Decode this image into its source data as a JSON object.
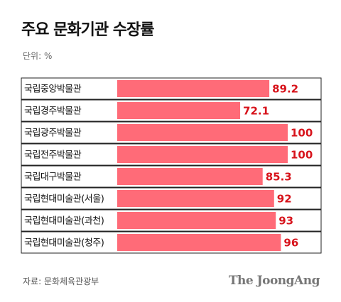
{
  "header": {
    "title": "주요 문화기관 수장률",
    "unit": "단위: %"
  },
  "footer": {
    "source": "자료: 문화체육관광부",
    "logo": "The JoongAng"
  },
  "colors": {
    "bar": "#ff6b78",
    "value": "#d7131b",
    "row_border": "#222222",
    "text": "#111111"
  },
  "chart_data": {
    "type": "bar",
    "orientation": "horizontal",
    "title": "주요 문화기관 수장률",
    "unit": "단위: %",
    "categories": [
      "국립중앙박물관",
      "국립경주박물관",
      "국립광주박물관",
      "국립전주박물관",
      "국립대구박물관",
      "국립현대미술관(서울)",
      "국립현대미술관(과천)",
      "국립현대미술관(청주)"
    ],
    "values": [
      89.2,
      72.1,
      100,
      100,
      85.3,
      92,
      93,
      96
    ],
    "value_labels": [
      "89.2",
      "72.1",
      "100",
      "100",
      "85.3",
      "92",
      "93",
      "96"
    ],
    "xlim": [
      0,
      100
    ],
    "grid": false,
    "legend": "none"
  }
}
